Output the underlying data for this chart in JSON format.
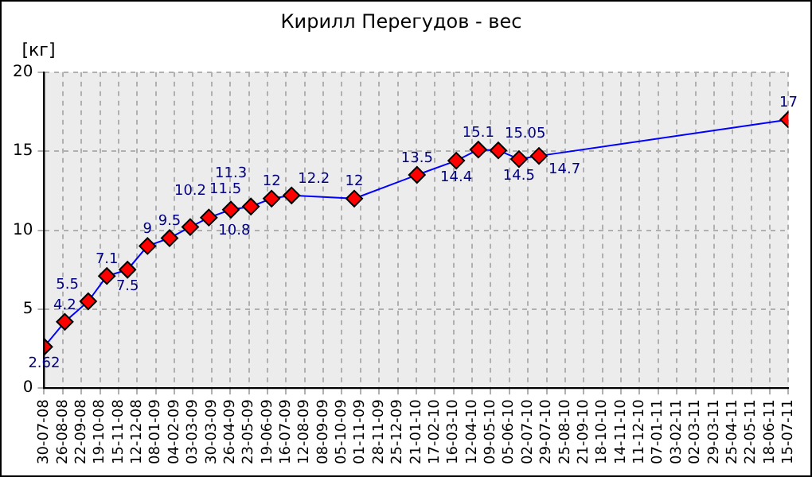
{
  "chart_data": {
    "type": "line",
    "title": "Кирилл Перегудов - вес",
    "ylabel": "[кг]",
    "x": [
      "2008-07-30",
      "2008-08-29",
      "2008-10-02",
      "2008-10-29",
      "2008-11-28",
      "2008-12-27",
      "2009-01-28",
      "2009-02-27",
      "2009-03-26",
      "2009-04-27",
      "2009-05-26",
      "2009-06-25",
      "2009-07-24",
      "2009-10-23",
      "2010-01-22",
      "2010-03-20",
      "2010-04-21",
      "2010-05-20",
      "2010-06-19",
      "2010-07-18",
      "2011-07-15"
    ],
    "series": [
      {
        "color": "#0000ff",
        "values": [
          2.62,
          4.2,
          5.5,
          7.1,
          7.5,
          9,
          9.5,
          10.2,
          10.8,
          11.3,
          11.5,
          12,
          12.2,
          12,
          13.5,
          14.4,
          15.1,
          15.05,
          14.5,
          14.7,
          17
        ]
      }
    ],
    "data_labels": true,
    "marker": "diamond",
    "line_style": "solid",
    "grid": true,
    "legend": false,
    "xlim": [
      "2008-07-30",
      "2011-07-15"
    ],
    "xticks": [
      {
        "value": "2008-07-30",
        "label": "30-07-08"
      },
      {
        "value": "2008-08-26",
        "label": "26-08-08"
      },
      {
        "value": "2008-09-22",
        "label": "22-09-08"
      },
      {
        "value": "2008-10-19",
        "label": "19-10-08"
      },
      {
        "value": "2008-11-15",
        "label": "15-11-08"
      },
      {
        "value": "2008-12-12",
        "label": "12-12-08"
      },
      {
        "value": "2009-01-08",
        "label": "08-01-09"
      },
      {
        "value": "2009-02-04",
        "label": "04-02-09"
      },
      {
        "value": "2009-03-03",
        "label": "03-03-09"
      },
      {
        "value": "2009-03-30",
        "label": "30-03-09"
      },
      {
        "value": "2009-04-26",
        "label": "26-04-09"
      },
      {
        "value": "2009-05-23",
        "label": "23-05-09"
      },
      {
        "value": "2009-06-19",
        "label": "19-06-09"
      },
      {
        "value": "2009-07-16",
        "label": "16-07-09"
      },
      {
        "value": "2009-08-12",
        "label": "12-08-09"
      },
      {
        "value": "2009-09-08",
        "label": "08-09-09"
      },
      {
        "value": "2009-10-05",
        "label": "05-10-09"
      },
      {
        "value": "2009-11-01",
        "label": "01-11-09"
      },
      {
        "value": "2009-11-28",
        "label": "28-11-09"
      },
      {
        "value": "2009-12-25",
        "label": "25-12-09"
      },
      {
        "value": "2010-01-21",
        "label": "21-01-10"
      },
      {
        "value": "2010-02-17",
        "label": "17-02-10"
      },
      {
        "value": "2010-03-16",
        "label": "16-03-10"
      },
      {
        "value": "2010-04-12",
        "label": "12-04-10"
      },
      {
        "value": "2010-05-09",
        "label": "09-05-10"
      },
      {
        "value": "2010-06-05",
        "label": "05-06-10"
      },
      {
        "value": "2010-07-02",
        "label": "02-07-10"
      },
      {
        "value": "2010-07-29",
        "label": "29-07-10"
      },
      {
        "value": "2010-08-25",
        "label": "25-08-10"
      },
      {
        "value": "2010-09-21",
        "label": "21-09-10"
      },
      {
        "value": "2010-10-18",
        "label": "18-10-10"
      },
      {
        "value": "2010-11-14",
        "label": "14-11-10"
      },
      {
        "value": "2010-12-11",
        "label": "11-12-10"
      },
      {
        "value": "2011-01-07",
        "label": "07-01-11"
      },
      {
        "value": "2011-02-03",
        "label": "03-02-11"
      },
      {
        "value": "2011-03-02",
        "label": "02-03-11"
      },
      {
        "value": "2011-03-29",
        "label": "29-03-11"
      },
      {
        "value": "2011-04-25",
        "label": "25-04-11"
      },
      {
        "value": "2011-05-22",
        "label": "22-05-11"
      },
      {
        "value": "2011-06-18",
        "label": "18-06-11"
      },
      {
        "value": "2011-07-15",
        "label": "15-07-11"
      }
    ],
    "ylim": [
      0,
      20
    ],
    "yticks": [
      0,
      5,
      10,
      15,
      20
    ]
  }
}
